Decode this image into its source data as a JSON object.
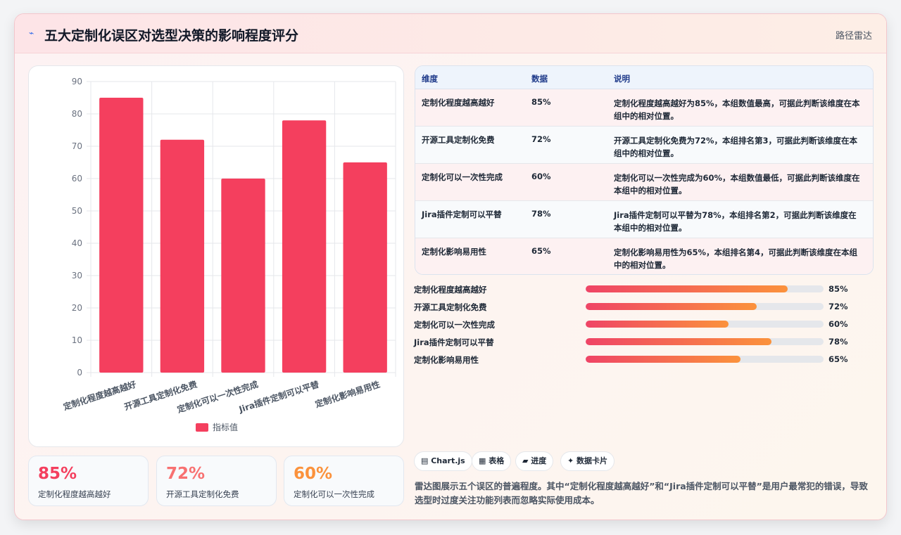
{
  "header": {
    "logo_icon": "chart-line-icon",
    "logo_glyph": "⌁",
    "title": "五大定制化误区对选型决策的影响程度评分",
    "tag": "路径雷达"
  },
  "chart_data": {
    "type": "bar",
    "categories": [
      "定制化程度越高越好",
      "开源工具定制化免费",
      "定制化可以一次性完成",
      "Jira插件定制可以平替",
      "定制化影响易用性"
    ],
    "series": [
      {
        "name": "指标值",
        "values": [
          85,
          72,
          60,
          78,
          65
        ]
      }
    ],
    "ylim": [
      0,
      90
    ],
    "yticks": [
      0,
      10,
      20,
      30,
      40,
      50,
      60,
      70,
      80,
      90
    ],
    "grid": true,
    "legend": "bottom",
    "bar_color": "#f43f5e"
  },
  "stats": [
    {
      "value": "85%",
      "label": "定制化程度越高越好",
      "color": "#f43f5e"
    },
    {
      "value": "72%",
      "label": "开源工具定制化免费",
      "color": "#f87171"
    },
    {
      "value": "60%",
      "label": "定制化可以一次性完成",
      "color": "#fb923c"
    }
  ],
  "table": {
    "headers": [
      "维度",
      "数据",
      "说明"
    ],
    "rows": [
      {
        "dim": "定制化程度越高越好",
        "value": "85%",
        "desc": "定制化程度越高越好为85%，本组数值最高，可据此判断该维度在本组中的相对位置。"
      },
      {
        "dim": "开源工具定制化免费",
        "value": "72%",
        "desc": "开源工具定制化免费为72%，本组排名第3，可据此判断该维度在本组中的相对位置。"
      },
      {
        "dim": "定制化可以一次性完成",
        "value": "60%",
        "desc": "定制化可以一次性完成为60%，本组数值最低，可据此判断该维度在本组中的相对位置。"
      },
      {
        "dim": "Jira插件定制可以平替",
        "value": "78%",
        "desc": "Jira插件定制可以平替为78%，本组排名第2，可据此判断该维度在本组中的相对位置。"
      },
      {
        "dim": "定制化影响易用性",
        "value": "65%",
        "desc": "定制化影响易用性为65%，本组排名第4，可据此判断该维度在本组中的相对位置。"
      }
    ]
  },
  "progress": [
    {
      "label": "定制化程度越高越好",
      "pct": "85%",
      "fraction": 0.85
    },
    {
      "label": "开源工具定制化免费",
      "pct": "72%",
      "fraction": 0.72
    },
    {
      "label": "定制化可以一次性完成",
      "pct": "60%",
      "fraction": 0.6
    },
    {
      "label": "Jira插件定制可以平替",
      "pct": "78%",
      "fraction": 0.78
    },
    {
      "label": "定制化影响易用性",
      "pct": "65%",
      "fraction": 0.65
    }
  ],
  "chips": [
    {
      "icon": "chart-icon",
      "label": "▤ Chart.js"
    },
    {
      "icon": "table-icon",
      "label": "▦ 表格"
    },
    {
      "icon": "progress-icon",
      "label": "▰ 进度"
    },
    {
      "icon": "sparkle-icon",
      "label": "✦ 数据卡片"
    }
  ],
  "note": "雷达图展示五个误区的普遍程度。其中“定制化程度越高越好”和“Jira插件定制可以平替”是用户最常犯的错误，导致选型时过度关注功能列表而忽略实际使用成本。"
}
